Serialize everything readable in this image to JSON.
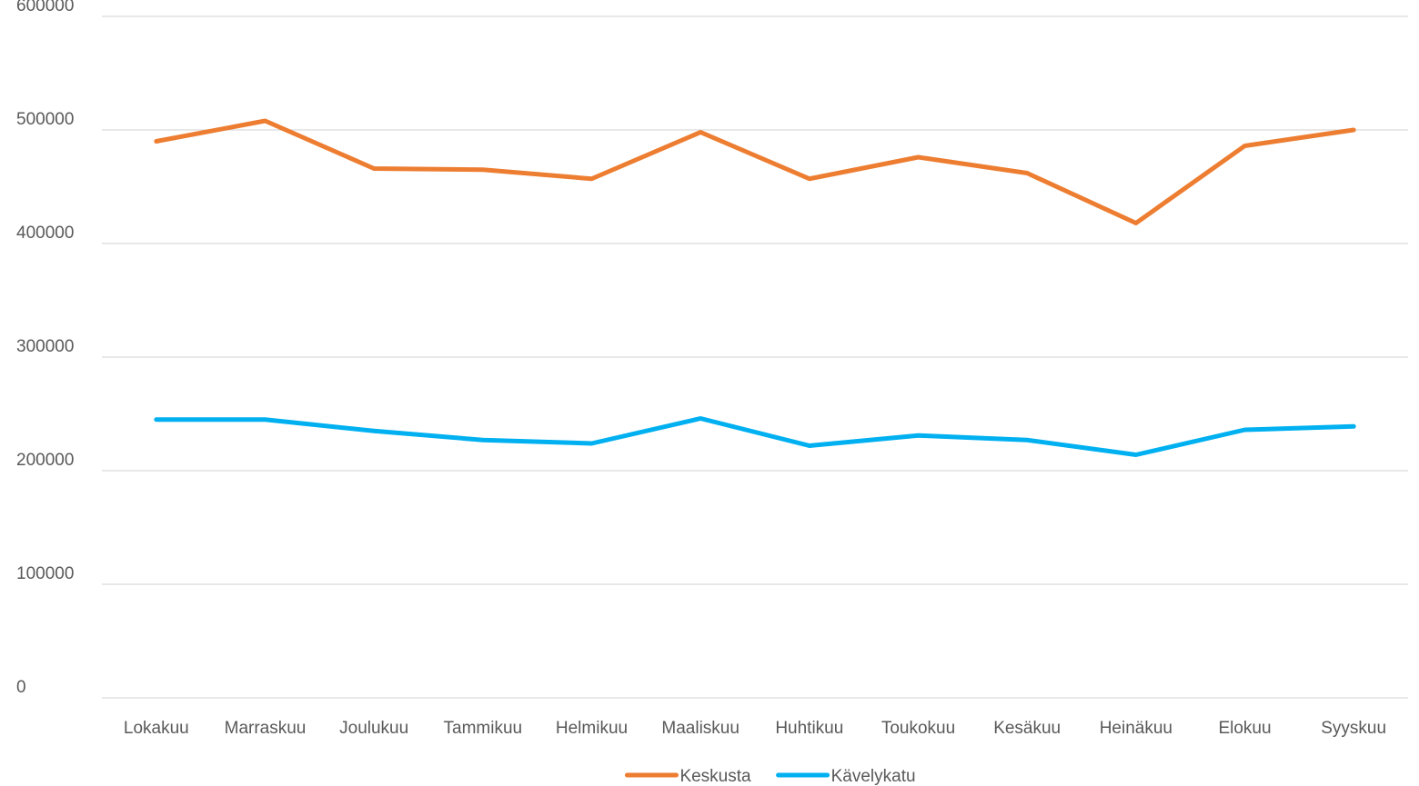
{
  "chart_data": {
    "type": "line",
    "categories": [
      "Lokakuu",
      "Marraskuu",
      "Joulukuu",
      "Tammikuu",
      "Helmikuu",
      "Maaliskuu",
      "Huhtikuu",
      "Toukokuu",
      "Kesäkuu",
      "Heinäkuu",
      "Elokuu",
      "Syyskuu"
    ],
    "series": [
      {
        "name": "Keskusta",
        "color": "#ed7d31",
        "values": [
          490000,
          508000,
          466000,
          465000,
          457000,
          498000,
          457000,
          476000,
          462000,
          418000,
          486000,
          500000
        ]
      },
      {
        "name": "Kävelykatu",
        "color": "#00b0f0",
        "values": [
          245000,
          245000,
          235000,
          227000,
          224000,
          246000,
          222000,
          231000,
          227000,
          214000,
          236000,
          239000
        ]
      }
    ],
    "ylim": [
      0,
      600000
    ],
    "yticks": [
      0,
      100000,
      200000,
      300000,
      400000,
      500000,
      600000
    ],
    "grid": true,
    "legend": "bottom"
  }
}
